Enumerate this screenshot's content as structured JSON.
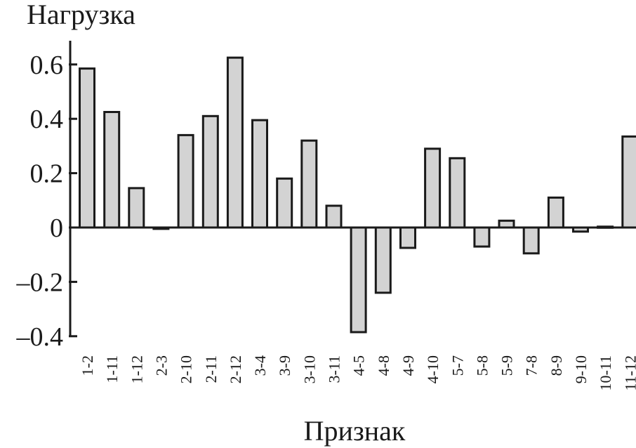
{
  "chart_data": {
    "type": "bar",
    "ylabel": "Нагрузка",
    "xlabel": "Признак",
    "ylim": [
      -0.4,
      0.7
    ],
    "yticks": [
      {
        "value": 0.6,
        "label": "0.6"
      },
      {
        "value": 0.4,
        "label": "0.4"
      },
      {
        "value": 0.2,
        "label": "0.2"
      },
      {
        "value": 0,
        "label": "0"
      },
      {
        "value": -0.2,
        "label": "–0.2"
      },
      {
        "value": -0.4,
        "label": "–0.4"
      }
    ],
    "categories": [
      "1-2",
      "1-11",
      "1-12",
      "2-3",
      "2-10",
      "2-11",
      "2-12",
      "3-4",
      "3-9",
      "3-10",
      "3-11",
      "4-5",
      "4-8",
      "4-9",
      "4-10",
      "5-7",
      "5-8",
      "5-9",
      "7-8",
      "8-9",
      "9-10",
      "10-11",
      "11-12"
    ],
    "values": [
      0.585,
      0.425,
      0.145,
      -0.005,
      0.34,
      0.41,
      0.625,
      0.395,
      0.18,
      0.32,
      0.08,
      -0.385,
      -0.24,
      -0.075,
      0.29,
      0.255,
      -0.07,
      0.025,
      -0.095,
      0.11,
      -0.015,
      0.003,
      0.335
    ],
    "grid": false,
    "bar_color": "#d3d3d3",
    "edge_color": "#1a1a1a"
  }
}
